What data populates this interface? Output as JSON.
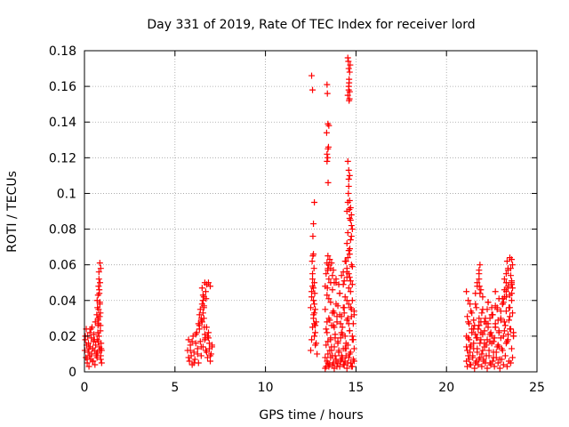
{
  "chart_data": {
    "type": "scatter",
    "title": "Day 331 of 2019, Rate Of TEC Index for receiver lord",
    "xlabel": "GPS time / hours",
    "ylabel": "ROTI / TECUs",
    "xlim": [
      0,
      25
    ],
    "ylim": [
      0,
      0.18
    ],
    "xticks": [
      0,
      5,
      10,
      15,
      20,
      25
    ],
    "xtick_labels": [
      "0",
      "5",
      "10",
      "15",
      "20",
      "25"
    ],
    "yticks": [
      0,
      0.02,
      0.04,
      0.06,
      0.08,
      0.1,
      0.12,
      0.14,
      0.16,
      0.18
    ],
    "ytick_labels": [
      "0",
      "0.02",
      "0.04",
      "0.06",
      "0.08",
      "0.1",
      "0.12",
      "0.14",
      "0.16",
      "0.18"
    ],
    "grid": true,
    "marker": "+",
    "marker_color": "#ff0000",
    "series": [
      {
        "x": [
          0.02,
          0.05,
          0.08,
          0.1,
          0.12,
          0.15,
          0.18,
          0.2,
          0.22,
          0.25,
          0.28,
          0.3,
          0.32,
          0.35,
          0.38,
          0.4,
          0.42,
          0.45,
          0.48,
          0.5,
          0.52,
          0.55,
          0.58,
          0.6,
          0.62,
          0.65,
          0.68,
          0.7,
          0.72,
          0.75,
          0.78,
          0.8,
          0.82,
          0.85,
          0.88,
          0.9,
          0.92,
          0.95,
          0.05,
          0.15,
          0.25,
          0.35,
          0.45,
          0.55,
          0.65,
          0.75,
          0.85,
          0.95,
          0.7,
          0.72,
          0.75,
          0.78,
          0.8,
          0.82,
          0.85,
          0.88,
          0.8,
          0.85,
          0.9,
          0.75,
          0.78,
          0.82,
          0.86,
          0.74,
          0.88,
          0.92,
          0.7,
          0.76,
          0.84,
          0.9,
          5.7,
          5.75,
          5.8,
          5.85,
          5.9,
          5.95,
          6.0,
          6.05,
          6.1,
          6.15,
          6.2,
          6.25,
          6.3,
          6.35,
          6.4,
          6.45,
          6.5,
          6.55,
          6.6,
          6.65,
          6.7,
          6.75,
          6.8,
          6.85,
          6.9,
          6.95,
          7.0,
          7.05,
          5.75,
          5.85,
          5.95,
          6.05,
          6.15,
          6.25,
          6.35,
          6.45,
          6.55,
          6.65,
          6.75,
          6.85,
          6.95,
          6.4,
          6.5,
          6.6,
          6.7,
          6.5,
          6.45,
          6.55,
          6.65,
          6.75,
          6.85,
          6.95,
          7.05,
          6.3,
          6.35,
          6.45,
          6.6,
          6.8,
          6.9,
          6.55,
          6.6,
          6.62,
          6.68,
          6.72,
          12.5,
          12.55,
          12.6,
          12.65,
          12.7,
          12.75,
          12.8,
          12.85,
          12.5,
          12.55,
          12.6,
          12.65,
          12.7,
          12.75,
          12.8,
          12.55,
          12.6,
          12.65,
          12.7,
          12.75,
          12.6,
          12.65,
          12.7,
          12.58,
          12.62,
          12.68,
          12.72,
          12.62,
          12.65,
          12.7,
          12.55,
          12.6,
          12.65,
          12.75,
          12.7,
          13.3,
          13.35,
          13.4,
          13.45,
          13.5,
          13.55,
          13.6,
          13.65,
          13.7,
          13.75,
          13.8,
          13.85,
          13.9,
          13.95,
          14.0,
          14.05,
          14.1,
          14.15,
          14.2,
          14.25,
          14.3,
          14.35,
          14.4,
          14.45,
          14.5,
          14.55,
          14.6,
          14.65,
          14.7,
          14.75,
          14.8,
          14.85,
          14.9,
          13.3,
          13.4,
          13.5,
          13.6,
          13.7,
          13.8,
          13.9,
          14.0,
          14.1,
          14.2,
          14.3,
          14.4,
          14.5,
          14.6,
          14.7,
          14.8,
          14.9,
          13.35,
          13.45,
          13.55,
          13.65,
          13.75,
          13.85,
          13.95,
          14.05,
          14.15,
          14.25,
          14.35,
          14.45,
          14.55,
          14.65,
          14.75,
          14.85,
          13.3,
          13.4,
          13.5,
          13.6,
          13.7,
          13.8,
          13.9,
          14.0,
          14.1,
          14.2,
          14.3,
          14.4,
          14.5,
          14.6,
          14.7,
          14.8,
          14.9,
          13.35,
          13.45,
          13.55,
          13.65,
          13.75,
          13.85,
          13.95,
          14.05,
          14.15,
          14.25,
          14.35,
          14.45,
          14.55,
          14.65,
          14.75,
          14.85,
          13.3,
          13.4,
          13.5,
          13.6,
          13.7,
          13.8,
          13.9,
          14.0,
          14.1,
          14.2,
          14.3,
          14.4,
          14.5,
          14.6,
          14.7,
          14.8,
          14.9,
          13.35,
          13.45,
          13.6,
          13.75,
          13.9,
          14.05,
          14.2,
          14.35,
          14.5,
          14.65,
          14.8,
          13.4,
          13.5,
          13.6,
          13.7,
          13.8,
          14.3,
          14.4,
          14.5,
          14.6,
          14.7,
          14.8,
          13.45,
          13.55,
          13.65,
          14.45,
          14.55,
          14.65,
          14.75,
          13.4,
          13.45,
          13.5,
          14.5,
          14.55,
          14.6,
          14.65,
          14.7,
          14.75,
          14.5,
          14.55,
          14.6,
          14.65,
          14.7,
          14.75,
          14.8,
          14.55,
          14.6,
          14.65,
          14.7,
          14.75,
          14.55,
          14.6,
          14.62,
          14.65,
          14.68,
          14.55,
          14.58,
          14.6,
          14.62,
          14.65,
          14.6,
          14.62,
          14.64,
          14.58,
          14.6,
          14.63,
          14.66,
          13.4,
          13.42,
          13.45,
          13.38,
          13.44,
          13.48,
          13.4,
          13.46,
          13.42,
          13.44,
          21.1,
          21.15,
          21.2,
          21.25,
          21.3,
          21.35,
          21.4,
          21.45,
          21.5,
          21.55,
          21.6,
          21.65,
          21.7,
          21.75,
          21.8,
          21.85,
          21.9,
          21.95,
          22.0,
          22.05,
          22.1,
          22.15,
          22.2,
          22.25,
          22.3,
          22.35,
          22.4,
          22.45,
          22.5,
          22.55,
          22.6,
          22.65,
          22.7,
          22.75,
          22.8,
          22.85,
          22.9,
          22.95,
          23.0,
          23.05,
          23.1,
          23.15,
          23.2,
          23.25,
          23.3,
          23.35,
          23.4,
          23.45,
          23.5,
          23.55,
          23.6,
          23.65,
          23.7,
          21.1,
          21.2,
          21.3,
          21.4,
          21.5,
          21.6,
          21.7,
          21.8,
          21.9,
          22.0,
          22.1,
          22.2,
          22.3,
          22.4,
          22.5,
          22.6,
          22.7,
          22.8,
          22.9,
          23.0,
          23.1,
          23.2,
          23.3,
          23.4,
          23.5,
          23.6,
          23.7,
          21.15,
          21.25,
          21.35,
          21.45,
          21.55,
          21.65,
          21.75,
          21.85,
          21.95,
          22.05,
          22.15,
          22.25,
          22.35,
          22.45,
          22.55,
          22.65,
          22.75,
          22.85,
          22.95,
          23.05,
          23.15,
          23.25,
          23.35,
          23.45,
          23.55,
          23.65,
          21.1,
          21.2,
          21.3,
          21.4,
          21.5,
          21.6,
          21.7,
          21.8,
          21.9,
          22.0,
          22.1,
          22.2,
          22.3,
          22.4,
          22.5,
          22.6,
          22.7,
          22.8,
          22.9,
          23.0,
          23.1,
          23.2,
          23.3,
          23.4,
          23.5,
          23.6,
          23.7,
          21.15,
          21.25,
          21.35,
          21.5,
          21.65,
          21.8,
          21.95,
          22.1,
          22.25,
          22.4,
          22.55,
          22.7,
          22.85,
          23.0,
          23.15,
          23.3,
          23.45,
          23.6,
          21.2,
          21.3,
          21.6,
          21.7,
          21.8,
          21.9,
          22.0,
          22.3,
          22.5,
          22.7,
          22.9,
          23.1,
          23.2,
          23.3,
          23.4,
          23.5,
          23.6,
          21.1,
          21.7,
          21.8,
          21.85,
          23.2,
          23.3,
          23.4,
          23.5,
          23.55,
          23.6,
          23.65,
          21.8,
          21.82,
          21.85,
          23.35,
          23.4,
          23.55,
          23.6,
          23.65
        ],
        "y": [
          0.012,
          0.018,
          0.008,
          0.024,
          0.015,
          0.005,
          0.02,
          0.011,
          0.016,
          0.003,
          0.009,
          0.022,
          0.014,
          0.007,
          0.019,
          0.01,
          0.025,
          0.013,
          0.006,
          0.017,
          0.021,
          0.012,
          0.004,
          0.028,
          0.015,
          0.009,
          0.032,
          0.018,
          0.011,
          0.026,
          0.035,
          0.02,
          0.014,
          0.038,
          0.023,
          0.009,
          0.016,
          0.012,
          0.02,
          0.007,
          0.013,
          0.024,
          0.006,
          0.018,
          0.01,
          0.029,
          0.012,
          0.005,
          0.04,
          0.036,
          0.043,
          0.048,
          0.052,
          0.044,
          0.039,
          0.033,
          0.056,
          0.061,
          0.058,
          0.03,
          0.027,
          0.046,
          0.05,
          0.022,
          0.026,
          0.013,
          0.008,
          0.017,
          0.031,
          0.007,
          0.012,
          0.018,
          0.006,
          0.015,
          0.009,
          0.004,
          0.02,
          0.011,
          0.007,
          0.016,
          0.022,
          0.013,
          0.005,
          0.024,
          0.017,
          0.009,
          0.028,
          0.014,
          0.03,
          0.021,
          0.012,
          0.025,
          0.008,
          0.019,
          0.016,
          0.006,
          0.01,
          0.014,
          0.008,
          0.012,
          0.017,
          0.005,
          0.021,
          0.01,
          0.026,
          0.014,
          0.033,
          0.018,
          0.011,
          0.022,
          0.009,
          0.035,
          0.038,
          0.042,
          0.045,
          0.047,
          0.03,
          0.04,
          0.05,
          0.049,
          0.05,
          0.048,
          0.015,
          0.027,
          0.032,
          0.029,
          0.036,
          0.02,
          0.013,
          0.043,
          0.037,
          0.025,
          0.019,
          0.041,
          0.012,
          0.018,
          0.025,
          0.032,
          0.02,
          0.015,
          0.028,
          0.01,
          0.036,
          0.042,
          0.048,
          0.03,
          0.038,
          0.022,
          0.016,
          0.045,
          0.052,
          0.04,
          0.033,
          0.026,
          0.055,
          0.047,
          0.05,
          0.062,
          0.065,
          0.058,
          0.044,
          0.076,
          0.083,
          0.095,
          0.166,
          0.158,
          0.066,
          0.035,
          0.027,
          0.008,
          0.015,
          0.022,
          0.005,
          0.03,
          0.012,
          0.018,
          0.026,
          0.009,
          0.034,
          0.014,
          0.021,
          0.006,
          0.028,
          0.017,
          0.011,
          0.032,
          0.019,
          0.007,
          0.025,
          0.013,
          0.036,
          0.02,
          0.009,
          0.029,
          0.015,
          0.038,
          0.023,
          0.011,
          0.031,
          0.018,
          0.027,
          0.013,
          0.035,
          0.028,
          0.041,
          0.019,
          0.033,
          0.025,
          0.038,
          0.016,
          0.044,
          0.022,
          0.036,
          0.013,
          0.04,
          0.027,
          0.045,
          0.02,
          0.034,
          0.003,
          0.01,
          0.004,
          0.012,
          0.005,
          0.009,
          0.003,
          0.011,
          0.006,
          0.008,
          0.004,
          0.013,
          0.005,
          0.01,
          0.003,
          0.007,
          0.048,
          0.043,
          0.052,
          0.039,
          0.046,
          0.033,
          0.05,
          0.037,
          0.044,
          0.031,
          0.049,
          0.042,
          0.053,
          0.047,
          0.036,
          0.04,
          0.032,
          0.024,
          0.017,
          0.029,
          0.014,
          0.026,
          0.019,
          0.031,
          0.012,
          0.027,
          0.021,
          0.033,
          0.016,
          0.03,
          0.023,
          0.035,
          0.018,
          0.002,
          0.006,
          0.003,
          0.008,
          0.004,
          0.002,
          0.007,
          0.005,
          0.003,
          0.009,
          0.004,
          0.006,
          0.002,
          0.008,
          0.005,
          0.003,
          0.006,
          0.055,
          0.058,
          0.05,
          0.057,
          0.052,
          0.049,
          0.054,
          0.051,
          0.056,
          0.053,
          0.059,
          0.061,
          0.06,
          0.058,
          0.054,
          0.05,
          0.056,
          0.062,
          0.058,
          0.055,
          0.051,
          0.049,
          0.065,
          0.063,
          0.061,
          0.062,
          0.064,
          0.066,
          0.06,
          0.122,
          0.125,
          0.138,
          0.072,
          0.078,
          0.068,
          0.086,
          0.074,
          0.082,
          0.09,
          0.095,
          0.104,
          0.11,
          0.092,
          0.088,
          0.08,
          0.118,
          0.108,
          0.096,
          0.085,
          0.076,
          0.155,
          0.16,
          0.152,
          0.168,
          0.172,
          0.176,
          0.174,
          0.158,
          0.164,
          0.157,
          0.17,
          0.162,
          0.153,
          0.1,
          0.113,
          0.091,
          0.069,
          0.161,
          0.156,
          0.139,
          0.134,
          0.12,
          0.126,
          0.118,
          0.106,
          0.047,
          0.057,
          0.006,
          0.012,
          0.009,
          0.018,
          0.004,
          0.015,
          0.022,
          0.008,
          0.013,
          0.026,
          0.005,
          0.019,
          0.011,
          0.024,
          0.007,
          0.016,
          0.028,
          0.01,
          0.021,
          0.006,
          0.014,
          0.03,
          0.009,
          0.018,
          0.025,
          0.012,
          0.005,
          0.022,
          0.016,
          0.032,
          0.008,
          0.019,
          0.027,
          0.011,
          0.035,
          0.015,
          0.023,
          0.007,
          0.03,
          0.013,
          0.038,
          0.02,
          0.042,
          0.026,
          0.045,
          0.017,
          0.048,
          0.029,
          0.036,
          0.024,
          0.051,
          0.033,
          0.02,
          0.02,
          0.028,
          0.014,
          0.033,
          0.024,
          0.038,
          0.019,
          0.03,
          0.022,
          0.035,
          0.016,
          0.027,
          0.039,
          0.021,
          0.032,
          0.017,
          0.025,
          0.036,
          0.014,
          0.029,
          0.041,
          0.023,
          0.034,
          0.018,
          0.031,
          0.044,
          0.022,
          0.003,
          0.007,
          0.004,
          0.009,
          0.002,
          0.006,
          0.004,
          0.008,
          0.003,
          0.007,
          0.005,
          0.002,
          0.009,
          0.004,
          0.006,
          0.003,
          0.008,
          0.005,
          0.002,
          0.007,
          0.004,
          0.009,
          0.003,
          0.006,
          0.005,
          0.008,
          0.014,
          0.019,
          0.011,
          0.024,
          0.016,
          0.021,
          0.013,
          0.026,
          0.018,
          0.012,
          0.023,
          0.015,
          0.027,
          0.017,
          0.02,
          0.011,
          0.025,
          0.014,
          0.022,
          0.019,
          0.012,
          0.028,
          0.016,
          0.021,
          0.024,
          0.013,
          0.02,
          0.031,
          0.027,
          0.034,
          0.029,
          0.036,
          0.026,
          0.033,
          0.028,
          0.035,
          0.03,
          0.032,
          0.037,
          0.029,
          0.034,
          0.039,
          0.042,
          0.036,
          0.04,
          0.04,
          0.038,
          0.044,
          0.048,
          0.052,
          0.046,
          0.042,
          0.039,
          0.036,
          0.045,
          0.041,
          0.038,
          0.046,
          0.05,
          0.047,
          0.043,
          0.049,
          0.045,
          0.05,
          0.057,
          0.06,
          0.052,
          0.055,
          0.057,
          0.064,
          0.058,
          0.063,
          0.06,
          0.055,
          0.048,
          0.044,
          0.062,
          0.058,
          0.054,
          0.05,
          0.047
        ]
      }
    ]
  }
}
